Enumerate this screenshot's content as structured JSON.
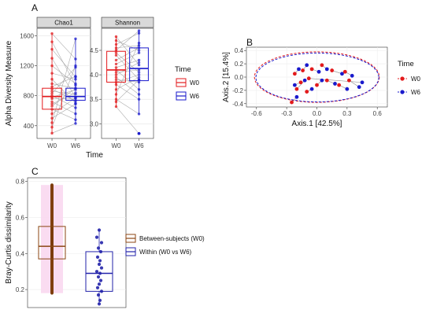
{
  "colors": {
    "w0": "#e31a1c",
    "w6": "#1a1acc",
    "between": "#8b4513",
    "between_pts": "#7a3b0a",
    "within": "#2222aa",
    "pink": "#f9d8ef",
    "panel_bg": "#ebebeb"
  },
  "panels": {
    "a": "A",
    "b": "B",
    "c": "C"
  },
  "chart_data": [
    {
      "id": "A",
      "type": "box",
      "ylabel": "Alpha Diversity Measure",
      "xlabel": "Time",
      "legend": {
        "title": "Time",
        "items": [
          "W0",
          "W6"
        ]
      },
      "facets": [
        {
          "title": "Chao1",
          "categories": [
            "W0",
            "W6"
          ],
          "yticks": [
            400,
            800,
            1200,
            1600
          ],
          "ylim": [
            230,
            1700
          ],
          "boxes": [
            {
              "group": "W0",
              "min": 300,
              "q1": 620,
              "median": 790,
              "q3": 900,
              "max": 1630
            },
            {
              "group": "W6",
              "min": 430,
              "q1": 740,
              "median": 790,
              "q3": 900,
              "max": 1560
            }
          ],
          "pairs": [
            [
              1630,
              1290
            ],
            [
              1520,
              940
            ],
            [
              1420,
              1050
            ],
            [
              1300,
              780
            ],
            [
              1200,
              960
            ],
            [
              1100,
              1020
            ],
            [
              1020,
              700
            ],
            [
              960,
              900
            ],
            [
              920,
              1060
            ],
            [
              890,
              730
            ],
            [
              860,
              820
            ],
            [
              830,
              1180
            ],
            [
              800,
              640
            ],
            [
              780,
              880
            ],
            [
              760,
              760
            ],
            [
              720,
              560
            ],
            [
              690,
              840
            ],
            [
              660,
              900
            ],
            [
              620,
              480
            ],
            [
              560,
              770
            ],
            [
              500,
              690
            ],
            [
              440,
              1560
            ],
            [
              380,
              1200
            ],
            [
              300,
              430
            ]
          ]
        },
        {
          "title": "Shannon",
          "categories": [
            "W0",
            "W6"
          ],
          "yticks": [
            3.0,
            3.5,
            4.0,
            4.5
          ],
          "ylim": [
            2.7,
            4.95
          ],
          "boxes": [
            {
              "group": "W0",
              "min": 3.35,
              "q1": 3.85,
              "median": 4.1,
              "q3": 4.48,
              "max": 4.78
            },
            {
              "group": "W6",
              "min": 3.2,
              "q1": 3.88,
              "median": 4.13,
              "q3": 4.55,
              "max": 4.9
            }
          ],
          "outliers": [
            {
              "group": "W6",
              "value": 2.8
            }
          ],
          "pairs": [
            [
              4.78,
              4.2
            ],
            [
              4.7,
              4.5
            ],
            [
              4.62,
              4.85
            ],
            [
              4.55,
              4.6
            ],
            [
              4.5,
              4.9
            ],
            [
              4.45,
              4.05
            ],
            [
              4.4,
              3.9
            ],
            [
              4.3,
              4.55
            ],
            [
              4.22,
              4.45
            ],
            [
              4.15,
              4.3
            ],
            [
              4.1,
              3.7
            ],
            [
              4.05,
              4.1
            ],
            [
              4.0,
              4.25
            ],
            [
              3.95,
              3.6
            ],
            [
              3.9,
              3.85
            ],
            [
              3.85,
              4.0
            ],
            [
              3.8,
              3.5
            ],
            [
              3.7,
              3.95
            ],
            [
              3.6,
              4.65
            ],
            [
              3.5,
              3.2
            ],
            [
              3.45,
              3.9
            ],
            [
              3.35,
              2.8
            ]
          ]
        }
      ]
    },
    {
      "id": "B",
      "type": "scatter",
      "xlabel": "Axis.1   [42.5%]",
      "ylabel": "Axis.2   [15.4%]",
      "xticks": [
        -0.6,
        -0.3,
        0.0,
        0.3,
        0.6
      ],
      "yticks": [
        -0.4,
        -0.2,
        0.0,
        0.2,
        0.4
      ],
      "xlim": [
        -0.7,
        0.7
      ],
      "ylim": [
        -0.45,
        0.45
      ],
      "legend": {
        "title": "Time",
        "items": [
          "W0",
          "W6"
        ]
      },
      "ellipse": {
        "cx": 0.0,
        "cy": 0.0,
        "rx": 0.62,
        "ry": 0.38
      },
      "pairs": [
        {
          "w0": [
            -0.22,
            0.05
          ],
          "w6": [
            -0.18,
            0.12
          ]
        },
        {
          "w0": [
            -0.2,
            -0.18
          ],
          "w6": [
            -0.12,
            -0.05
          ]
        },
        {
          "w0": [
            -0.14,
            0.1
          ],
          "w6": [
            -0.1,
            0.18
          ]
        },
        {
          "w0": [
            -0.16,
            -0.08
          ],
          "w6": [
            -0.22,
            -0.12
          ]
        },
        {
          "w0": [
            -0.1,
            -0.22
          ],
          "w6": [
            -0.05,
            -0.18
          ]
        },
        {
          "w0": [
            -0.05,
            0.12
          ],
          "w6": [
            0.02,
            0.08
          ]
        },
        {
          "w0": [
            0.0,
            -0.12
          ],
          "w6": [
            0.05,
            -0.05
          ]
        },
        {
          "w0": [
            0.05,
            0.18
          ],
          "w6": [
            0.1,
            0.12
          ]
        },
        {
          "w0": [
            0.1,
            -0.05
          ],
          "w6": [
            0.18,
            -0.1
          ]
        },
        {
          "w0": [
            0.15,
            0.1
          ],
          "w6": [
            0.25,
            0.05
          ]
        },
        {
          "w0": [
            0.22,
            -0.12
          ],
          "w6": [
            0.3,
            -0.18
          ]
        },
        {
          "w0": [
            0.28,
            0.08
          ],
          "w6": [
            0.35,
            0.02
          ]
        },
        {
          "w0": [
            0.32,
            -0.05
          ],
          "w6": [
            0.42,
            -0.15
          ]
        },
        {
          "w0": [
            -0.25,
            -0.38
          ],
          "w6": [
            -0.2,
            -0.3
          ]
        },
        {
          "w0": [
            -0.08,
            -0.02
          ],
          "w6": [
            0.45,
            -0.08
          ]
        }
      ]
    },
    {
      "id": "C",
      "type": "box",
      "ylabel": "Bray-Curtis dissimilarity",
      "yticks": [
        0.2,
        0.4,
        0.6,
        0.8
      ],
      "ylim": [
        0.1,
        0.82
      ],
      "legend": {
        "items": [
          "Between-subjects (W0)",
          "Within (W0 vs W6)"
        ]
      },
      "boxes": [
        {
          "group": "Between-subjects (W0)",
          "min": 0.18,
          "q1": 0.37,
          "median": 0.44,
          "q3": 0.55,
          "max": 0.78
        },
        {
          "group": "Within (W0 vs W6)",
          "min": 0.12,
          "q1": 0.19,
          "median": 0.29,
          "q3": 0.41,
          "max": 0.53
        }
      ],
      "within_points": [
        0.53,
        0.49,
        0.46,
        0.43,
        0.41,
        0.38,
        0.36,
        0.34,
        0.32,
        0.3,
        0.29,
        0.27,
        0.25,
        0.23,
        0.21,
        0.19,
        0.17,
        0.14,
        0.12
      ]
    }
  ]
}
